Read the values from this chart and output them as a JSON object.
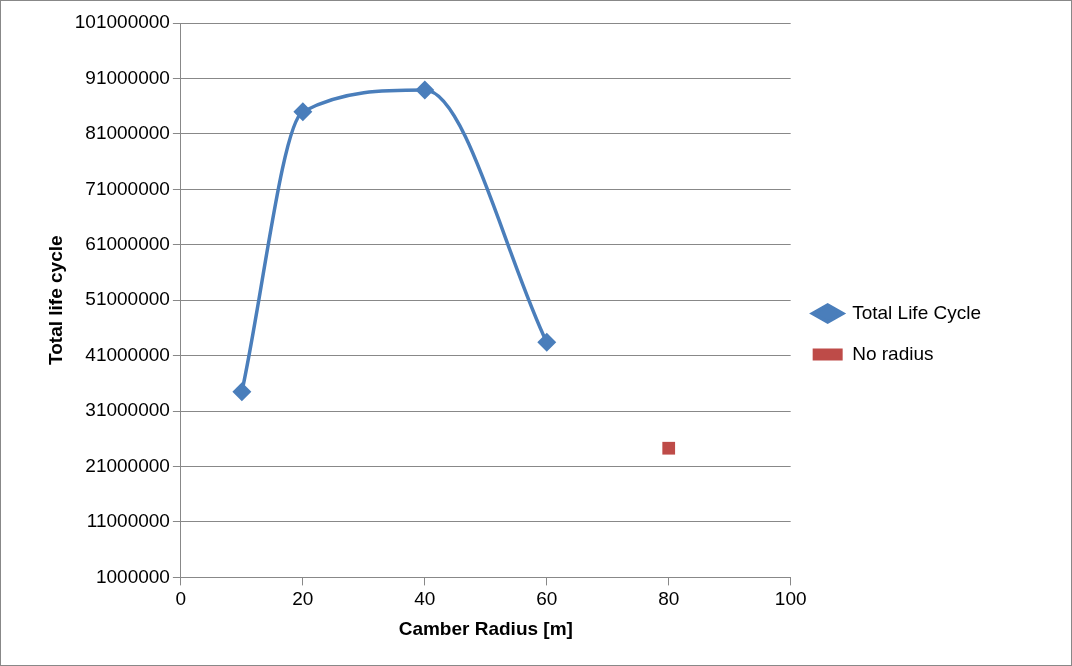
{
  "chart_data": {
    "type": "line",
    "xlabel": "Camber Radius [m]",
    "ylabel": "Total life cycle",
    "xlim": [
      0,
      100
    ],
    "xticks": [
      0,
      20,
      40,
      60,
      80,
      100
    ],
    "ylim": [
      1000000,
      101000000
    ],
    "yticks": [
      1000000,
      11000000,
      21000000,
      31000000,
      41000000,
      51000000,
      61000000,
      71000000,
      81000000,
      91000000,
      101000000
    ],
    "grid": "y",
    "legend": "right",
    "series": [
      {
        "name": "Total Life Cycle",
        "type": "line",
        "marker": "diamond",
        "color": "#4a7ebb",
        "x": [
          10,
          20,
          40,
          60
        ],
        "values": [
          34500000,
          85000000,
          88900000,
          43400000
        ]
      },
      {
        "name": "No radius",
        "type": "scatter",
        "marker": "square",
        "color": "#be4b48",
        "x": [
          80
        ],
        "values": [
          24300000
        ]
      }
    ]
  }
}
